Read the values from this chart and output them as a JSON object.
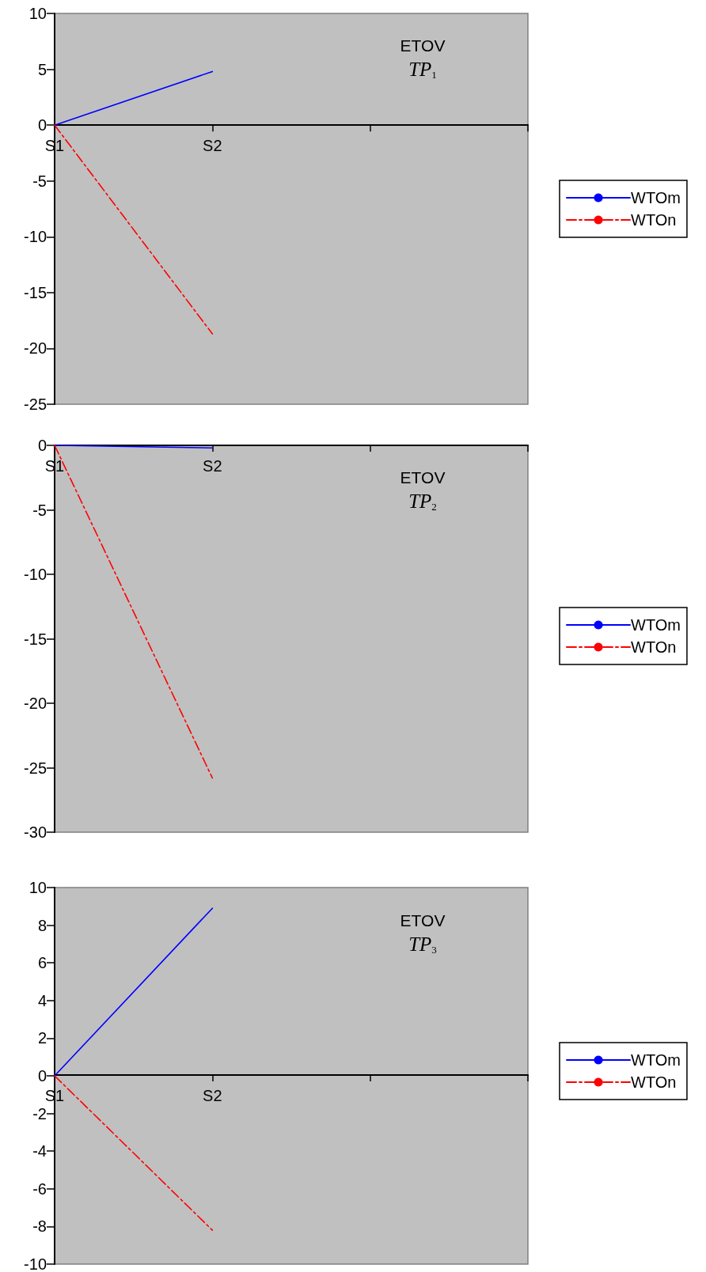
{
  "chart_data": [
    {
      "type": "line",
      "title": "ETOV",
      "subtitle": "TP$_{1}$",
      "categories": [
        "S1",
        "S2",
        null,
        null
      ],
      "series": [
        {
          "name": "WTOm",
          "color": "#0000ff",
          "line_style": "solid",
          "values": [
            0,
            4.8,
            null,
            null
          ]
        },
        {
          "name": "WTOn",
          "color": "#ff0000",
          "line_style": "dashed",
          "values": [
            0,
            -18.7,
            null,
            null
          ]
        }
      ],
      "ylim": [
        -25,
        10
      ],
      "yticks": [
        -25,
        -20,
        -15,
        -10,
        -5,
        0,
        5,
        10
      ],
      "grid": false,
      "legend": "right",
      "marker": "none"
    },
    {
      "type": "line",
      "title": "ETOV",
      "subtitle": "TP$_{2}$",
      "categories": [
        "S1",
        "S2",
        null,
        null
      ],
      "series": [
        {
          "name": "WTOm",
          "color": "#0000ff",
          "line_style": "solid",
          "values": [
            0,
            -0.2,
            null,
            null
          ]
        },
        {
          "name": "WTOn",
          "color": "#ff0000",
          "line_style": "dashed",
          "values": [
            0,
            -25.8,
            null,
            null
          ]
        }
      ],
      "ylim": [
        -30,
        0
      ],
      "yticks": [
        -30,
        -25,
        -20,
        -15,
        -10,
        -5,
        0
      ],
      "grid": false,
      "legend": "right",
      "marker": "none"
    },
    {
      "type": "line",
      "title": "ETOV",
      "subtitle": "TP$_{3}$",
      "categories": [
        "S1",
        "S2",
        null,
        null
      ],
      "series": [
        {
          "name": "WTOm",
          "color": "#0000ff",
          "line_style": "solid",
          "values": [
            0,
            8.9,
            null,
            null
          ]
        },
        {
          "name": "WTOn",
          "color": "#ff0000",
          "line_style": "dashed",
          "values": [
            0,
            -8.2,
            null,
            null
          ]
        }
      ],
      "ylim": [
        -10,
        10
      ],
      "yticks": [
        -10,
        -8,
        -6,
        -4,
        -2,
        0,
        2,
        4,
        6,
        8,
        10
      ],
      "grid": false,
      "legend": "right",
      "marker": "none"
    }
  ]
}
